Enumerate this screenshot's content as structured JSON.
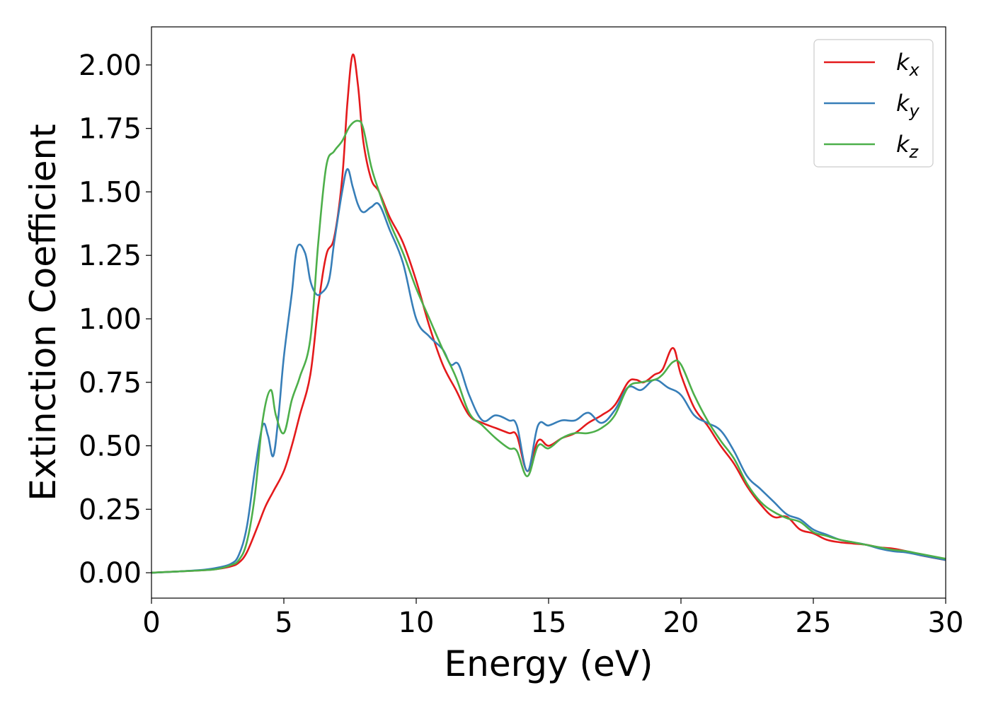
{
  "chart_data": {
    "type": "line",
    "xlabel": "Energy (eV)",
    "ylabel": "Extinction Coefficient",
    "xlim": [
      0,
      30
    ],
    "ylim": [
      -0.1,
      2.15
    ],
    "x_ticks": [
      "0",
      "5",
      "10",
      "15",
      "20",
      "25",
      "30"
    ],
    "y_ticks": [
      "0.00",
      "0.25",
      "0.50",
      "0.75",
      "1.00",
      "1.25",
      "1.50",
      "1.75",
      "2.00"
    ],
    "grid": false,
    "legend_position": "top-right",
    "series": [
      {
        "name": "k",
        "subscript": "x",
        "color": "#e41a1c",
        "x": [
          0,
          1,
          2,
          2.5,
          3,
          3.3,
          3.6,
          4,
          4.3,
          4.6,
          5,
          5.3,
          5.6,
          6,
          6.3,
          6.6,
          6.9,
          7.2,
          7.4,
          7.6,
          7.8,
          8,
          8.3,
          8.6,
          9,
          9.5,
          10,
          10.5,
          11,
          11.5,
          12,
          12.5,
          13,
          13.5,
          13.8,
          14.2,
          14.6,
          15,
          15.5,
          16,
          16.5,
          17,
          17.5,
          18,
          18.3,
          18.6,
          19,
          19.3,
          19.7,
          20,
          20.5,
          21,
          21.5,
          22,
          22.5,
          23,
          23.5,
          24,
          24.5,
          25,
          25.5,
          26,
          26.5,
          27,
          27.5,
          28,
          28.5,
          29,
          30
        ],
        "y": [
          0,
          0.005,
          0.01,
          0.015,
          0.025,
          0.04,
          0.08,
          0.18,
          0.26,
          0.32,
          0.4,
          0.5,
          0.62,
          0.78,
          1.05,
          1.25,
          1.32,
          1.55,
          1.85,
          2.04,
          1.92,
          1.7,
          1.55,
          1.5,
          1.4,
          1.3,
          1.15,
          0.97,
          0.82,
          0.72,
          0.62,
          0.59,
          0.57,
          0.55,
          0.54,
          0.4,
          0.52,
          0.5,
          0.53,
          0.55,
          0.59,
          0.62,
          0.66,
          0.75,
          0.76,
          0.75,
          0.78,
          0.8,
          0.885,
          0.78,
          0.65,
          0.58,
          0.5,
          0.43,
          0.34,
          0.27,
          0.22,
          0.22,
          0.17,
          0.155,
          0.13,
          0.12,
          0.115,
          0.11,
          0.1,
          0.095,
          0.085,
          0.07,
          0.05
        ]
      },
      {
        "name": "k",
        "subscript": "y",
        "color": "#377eb8",
        "x": [
          0,
          1,
          2,
          2.5,
          3,
          3.3,
          3.6,
          3.9,
          4.2,
          4.4,
          4.6,
          4.8,
          5,
          5.3,
          5.5,
          5.8,
          6,
          6.2,
          6.4,
          6.7,
          6.9,
          7.2,
          7.4,
          7.6,
          7.8,
          8,
          8.3,
          8.6,
          9,
          9.5,
          10,
          10.5,
          11,
          11.3,
          11.6,
          12,
          12.5,
          13,
          13.5,
          13.8,
          14.2,
          14.6,
          15,
          15.5,
          16,
          16.5,
          17,
          17.5,
          18,
          18.5,
          19,
          19.5,
          20,
          20.5,
          21,
          21.5,
          22,
          22.5,
          23,
          23.5,
          24,
          24.5,
          25,
          25.5,
          26,
          26.5,
          27,
          27.5,
          28,
          28.5,
          29,
          30
        ],
        "y": [
          0,
          0.005,
          0.012,
          0.02,
          0.035,
          0.07,
          0.18,
          0.4,
          0.58,
          0.54,
          0.46,
          0.62,
          0.85,
          1.1,
          1.28,
          1.26,
          1.15,
          1.1,
          1.1,
          1.15,
          1.3,
          1.5,
          1.59,
          1.52,
          1.45,
          1.42,
          1.44,
          1.45,
          1.35,
          1.22,
          1.0,
          0.93,
          0.88,
          0.82,
          0.82,
          0.7,
          0.6,
          0.62,
          0.6,
          0.58,
          0.4,
          0.58,
          0.58,
          0.6,
          0.6,
          0.63,
          0.59,
          0.64,
          0.73,
          0.72,
          0.76,
          0.73,
          0.7,
          0.62,
          0.59,
          0.56,
          0.48,
          0.38,
          0.33,
          0.28,
          0.23,
          0.21,
          0.17,
          0.15,
          0.13,
          0.12,
          0.11,
          0.095,
          0.085,
          0.08,
          0.07,
          0.05
        ]
      },
      {
        "name": "k",
        "subscript": "z",
        "color": "#4daf4a",
        "x": [
          0,
          1,
          2,
          2.5,
          3,
          3.3,
          3.6,
          3.9,
          4.2,
          4.5,
          4.7,
          5,
          5.3,
          5.6,
          6,
          6.3,
          6.6,
          6.9,
          7.2,
          7.5,
          7.8,
          8,
          8.3,
          8.6,
          9,
          9.5,
          10,
          10.5,
          11,
          11.5,
          12,
          12.5,
          13,
          13.5,
          13.8,
          14.2,
          14.6,
          15,
          15.5,
          16,
          16.5,
          17,
          17.5,
          18,
          18.5,
          19,
          19.3,
          19.7,
          20,
          20.5,
          21,
          21.5,
          22,
          22.5,
          23,
          23.5,
          24,
          24.5,
          25,
          25.5,
          26,
          26.5,
          27,
          27.5,
          28,
          28.5,
          29,
          30
        ],
        "y": [
          0,
          0.005,
          0.01,
          0.015,
          0.03,
          0.05,
          0.12,
          0.3,
          0.6,
          0.72,
          0.62,
          0.55,
          0.68,
          0.77,
          0.92,
          1.3,
          1.6,
          1.66,
          1.7,
          1.76,
          1.78,
          1.75,
          1.6,
          1.5,
          1.38,
          1.26,
          1.12,
          1.0,
          0.88,
          0.77,
          0.63,
          0.58,
          0.53,
          0.49,
          0.48,
          0.38,
          0.5,
          0.49,
          0.53,
          0.55,
          0.55,
          0.57,
          0.62,
          0.73,
          0.75,
          0.76,
          0.78,
          0.83,
          0.82,
          0.7,
          0.6,
          0.52,
          0.45,
          0.35,
          0.28,
          0.24,
          0.215,
          0.2,
          0.16,
          0.145,
          0.13,
          0.12,
          0.11,
          0.1,
          0.09,
          0.085,
          0.075,
          0.055
        ]
      }
    ]
  }
}
